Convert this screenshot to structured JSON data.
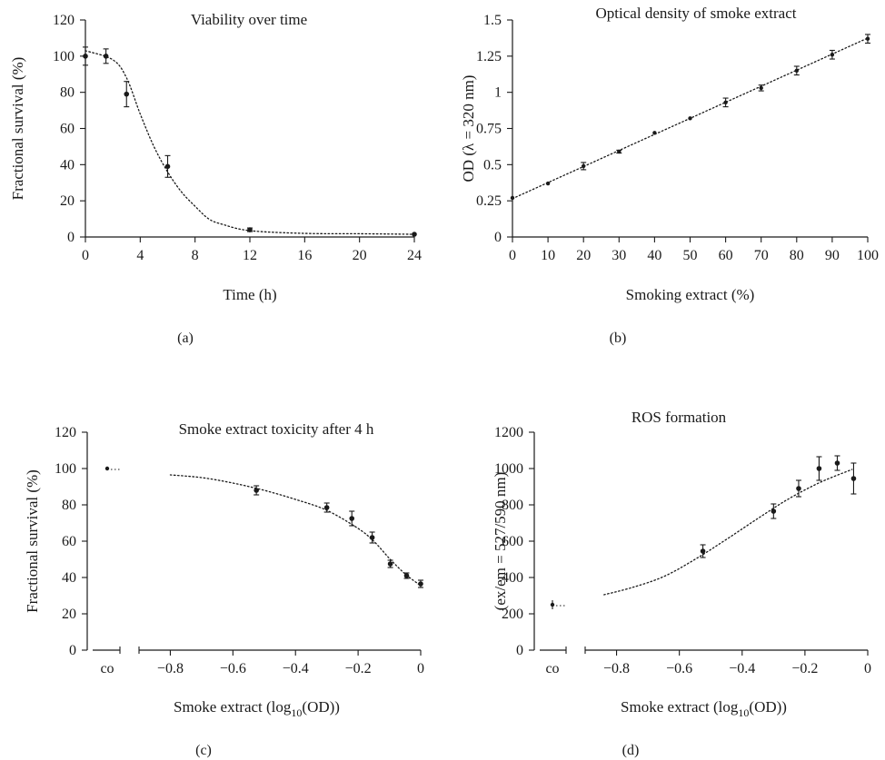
{
  "figure": {
    "panels": [
      "(a)",
      "(b)",
      "(c)",
      "(d)"
    ]
  },
  "chart_data": [
    {
      "type": "scatter",
      "title": "Viability over time",
      "xlabel": "Time (h)",
      "ylabel": "Fractional survival (%)",
      "xlim": [
        0,
        24
      ],
      "ylim": [
        0,
        120
      ],
      "xticks": [
        "0",
        "4",
        "8",
        "12",
        "16",
        "20",
        "24"
      ],
      "yticks": [
        "0",
        "20",
        "40",
        "60",
        "80",
        "100",
        "120"
      ],
      "points": [
        {
          "x": 0,
          "y": 100,
          "err": 5
        },
        {
          "x": 1.5,
          "y": 100,
          "err": 4
        },
        {
          "x": 3,
          "y": 79,
          "err": 7
        },
        {
          "x": 6,
          "y": 39,
          "err": 6
        },
        {
          "x": 12,
          "y": 4,
          "err": 1
        },
        {
          "x": 24,
          "y": 1.5,
          "err": 0.5
        }
      ],
      "fit": {
        "style": "dotted",
        "points": [
          [
            0,
            103
          ],
          [
            2,
            98
          ],
          [
            3,
            88
          ],
          [
            4,
            68
          ],
          [
            5,
            50
          ],
          [
            6,
            36
          ],
          [
            7,
            25
          ],
          [
            8,
            17
          ],
          [
            9,
            10
          ],
          [
            10,
            7
          ],
          [
            12,
            3.5
          ],
          [
            16,
            2
          ],
          [
            20,
            1.8
          ],
          [
            24,
            1.5
          ]
        ]
      },
      "grid": false
    },
    {
      "type": "scatter",
      "title": "Optical density of smoke extract",
      "xlabel": "Smoking extract (%)",
      "ylabel": "OD (λ = 320 nm)",
      "xlim": [
        0,
        100
      ],
      "ylim": [
        0,
        1.5
      ],
      "xticks": [
        "0",
        "10",
        "20",
        "30",
        "40",
        "50",
        "60",
        "70",
        "80",
        "90",
        "100"
      ],
      "yticks": [
        "0",
        "0.25",
        "0.5",
        "0.75",
        "1",
        "1.25",
        "1.5"
      ],
      "points": [
        {
          "x": 0,
          "y": 0.27,
          "err": 0.005
        },
        {
          "x": 10,
          "y": 0.37,
          "err": 0.005
        },
        {
          "x": 20,
          "y": 0.49,
          "err": 0.025
        },
        {
          "x": 30,
          "y": 0.59,
          "err": 0.01
        },
        {
          "x": 40,
          "y": 0.72,
          "err": 0.005
        },
        {
          "x": 50,
          "y": 0.82,
          "err": 0.005
        },
        {
          "x": 60,
          "y": 0.93,
          "err": 0.03
        },
        {
          "x": 70,
          "y": 1.03,
          "err": 0.02
        },
        {
          "x": 80,
          "y": 1.15,
          "err": 0.03
        },
        {
          "x": 90,
          "y": 1.26,
          "err": 0.03
        },
        {
          "x": 100,
          "y": 1.37,
          "err": 0.03
        }
      ],
      "fit": {
        "style": "dotted",
        "points": [
          [
            0,
            0.265
          ],
          [
            100,
            1.375
          ]
        ]
      },
      "grid": false
    },
    {
      "type": "scatter",
      "title": "Smoke extract toxicity after 4 h",
      "xlabel": "Smoke extract (log",
      "xlabel_sub": "10",
      "xlabel_tail": "(OD))",
      "ylabel": "Fractional survival (%)",
      "xlim": [
        -0.9,
        0
      ],
      "ylim": [
        0,
        120
      ],
      "xticks": [
        "−0.8",
        "−0.6",
        "−0.4",
        "−0.2",
        "0"
      ],
      "yticks": [
        "0",
        "20",
        "40",
        "60",
        "80",
        "100",
        "120"
      ],
      "control": {
        "label": "co",
        "y": 100,
        "err": 0.5
      },
      "points": [
        {
          "x": -0.525,
          "y": 88,
          "err": 2.5
        },
        {
          "x": -0.3,
          "y": 78.5,
          "err": 2.5
        },
        {
          "x": -0.22,
          "y": 72.5,
          "err": 4
        },
        {
          "x": -0.155,
          "y": 62,
          "err": 3
        },
        {
          "x": -0.097,
          "y": 47.5,
          "err": 2
        },
        {
          "x": -0.045,
          "y": 41,
          "err": 1.5
        },
        {
          "x": 0,
          "y": 36.5,
          "err": 2
        }
      ],
      "fit": {
        "style": "dotted",
        "points": [
          [
            -0.8,
            96.5
          ],
          [
            -0.7,
            95
          ],
          [
            -0.6,
            92
          ],
          [
            -0.5,
            88
          ],
          [
            -0.4,
            83
          ],
          [
            -0.3,
            77
          ],
          [
            -0.2,
            67
          ],
          [
            -0.15,
            60
          ],
          [
            -0.1,
            50.5
          ],
          [
            -0.05,
            42
          ],
          [
            0,
            35.5
          ]
        ]
      },
      "grid": false
    },
    {
      "type": "scatter",
      "title": "ROS formation",
      "xlabel": "Smoke extract (log",
      "xlabel_sub": "10",
      "xlabel_tail": "(OD))",
      "ylabel": "(ex/em = 527/590 nm)",
      "xlim": [
        -0.9,
        0
      ],
      "ylim": [
        0,
        1200
      ],
      "xticks": [
        "−0.8",
        "−0.6",
        "−0.4",
        "−0.2",
        "0"
      ],
      "yticks": [
        "0",
        "200",
        "400",
        "600",
        "800",
        "1000",
        "1200"
      ],
      "control": {
        "label": "co",
        "y": 250,
        "err": 25
      },
      "points": [
        {
          "x": -0.525,
          "y": 545,
          "err": 35
        },
        {
          "x": -0.3,
          "y": 765,
          "err": 40
        },
        {
          "x": -0.22,
          "y": 890,
          "err": 45
        },
        {
          "x": -0.155,
          "y": 1000,
          "err": 65
        },
        {
          "x": -0.097,
          "y": 1030,
          "err": 40
        },
        {
          "x": -0.045,
          "y": 945,
          "err": 85
        }
      ],
      "fit": {
        "style": "dotted",
        "points": [
          [
            -0.84,
            305
          ],
          [
            -0.75,
            345
          ],
          [
            -0.65,
            405
          ],
          [
            -0.55,
            500
          ],
          [
            -0.45,
            610
          ],
          [
            -0.35,
            725
          ],
          [
            -0.25,
            835
          ],
          [
            -0.15,
            925
          ],
          [
            -0.05,
            995
          ]
        ]
      },
      "grid": false
    }
  ]
}
